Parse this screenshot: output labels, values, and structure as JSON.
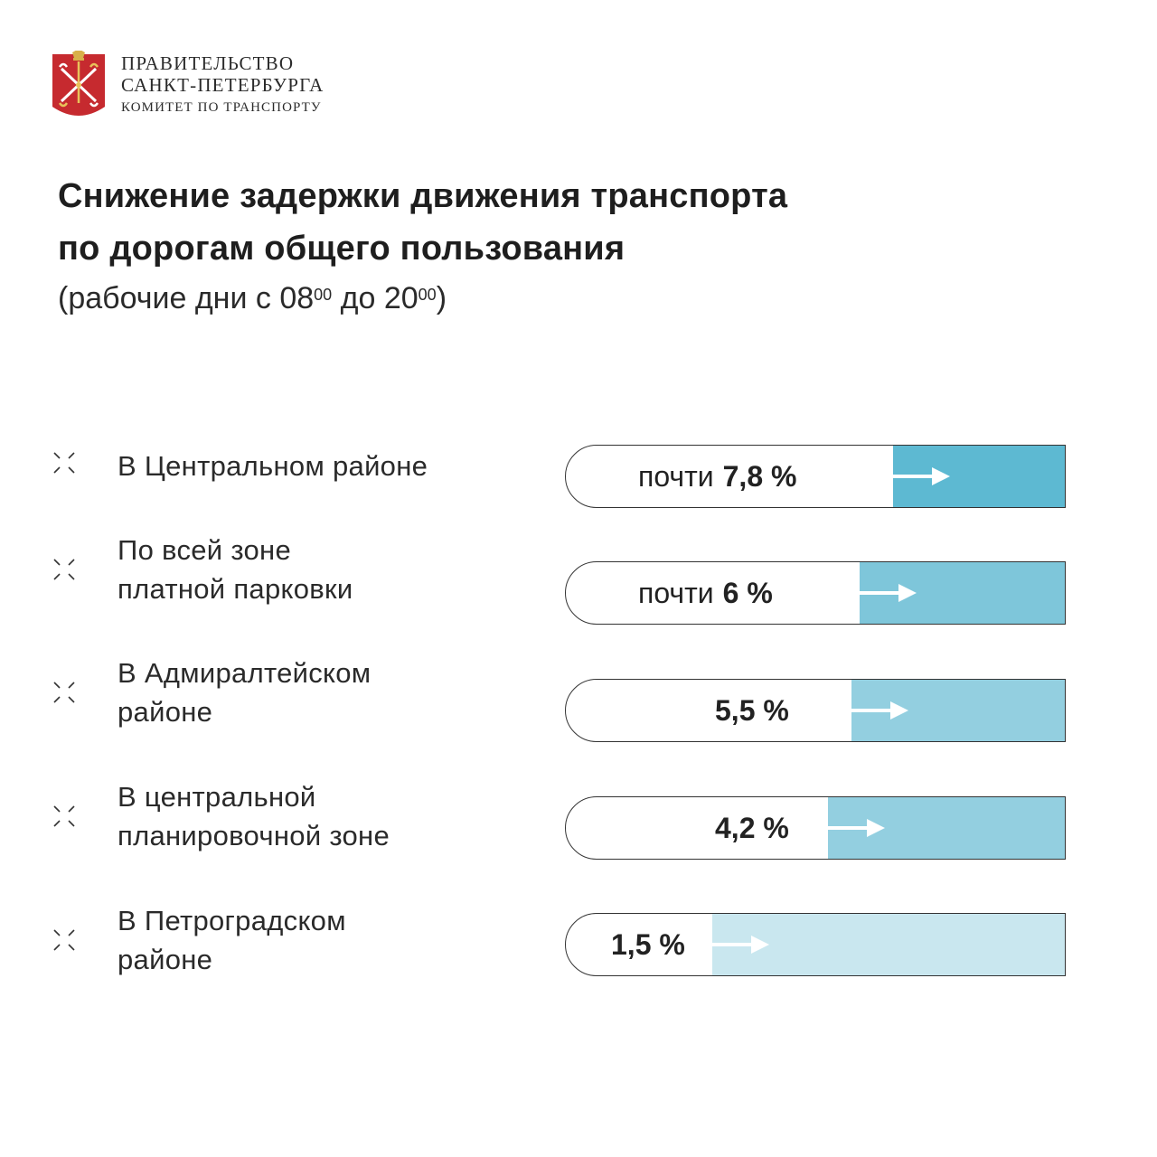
{
  "header": {
    "org_line1": "ПРАВИТЕЛЬСТВО",
    "org_line2": "САНКТ-ПЕТЕРБУРГА",
    "org_line3": "КОМИТЕТ ПО ТРАНСПОРТУ",
    "emblem_icon": "spb-coat-of-arms-icon"
  },
  "title": {
    "line1": "Снижение задержки движения транспорта",
    "line2": "по дорогам общего пользования",
    "subtitle_prefix": "(рабочие дни с 08",
    "subtitle_sup1": "00",
    "subtitle_mid": " до 20",
    "subtitle_sup2": "00",
    "subtitle_suffix": ")"
  },
  "colors": {
    "bar_1": "#5db9d2",
    "bar_2": "#7ec6da",
    "bar_3": "#93cfe0",
    "bar_4": "#93cfe0",
    "bar_5": "#c9e7ef",
    "text": "#222222"
  },
  "chart_data": {
    "type": "bar",
    "title": "Снижение задержки движения транспорта по дорогам общего пользования",
    "subtitle": "(рабочие дни с 08⁰⁰ до 20⁰⁰)",
    "categories": [
      "В Центральном районе",
      "По всей зоне платной парковки",
      "В Адмиралтейском районе",
      "В центральной планировочной зоне",
      "В Петроградском районе"
    ],
    "values": [
      7.8,
      6,
      5.5,
      4.2,
      1.5
    ],
    "unit": "%",
    "rows": [
      {
        "label_lines": [
          "В Центральном районе"
        ],
        "prefix": "почти",
        "value_text": "7,8 %",
        "value": 7.8
      },
      {
        "label_lines": [
          "По всей зоне",
          "платной парковки"
        ],
        "prefix": "почти",
        "value_text": "6 %",
        "value": 6
      },
      {
        "label_lines": [
          "В Адмиралтейском",
          "районе"
        ],
        "prefix": "",
        "value_text": "5,5 %",
        "value": 5.5
      },
      {
        "label_lines": [
          "В центральной",
          "планировочной зоне"
        ],
        "prefix": "",
        "value_text": "4,2 %",
        "value": 4.2
      },
      {
        "label_lines": [
          "В Петроградском",
          "районе"
        ],
        "prefix": "",
        "value_text": "1,5 %",
        "value": 1.5
      }
    ],
    "row_icon": "sparkle-cross-icon",
    "bar_arrow_icon": "arrow-right-icon"
  }
}
